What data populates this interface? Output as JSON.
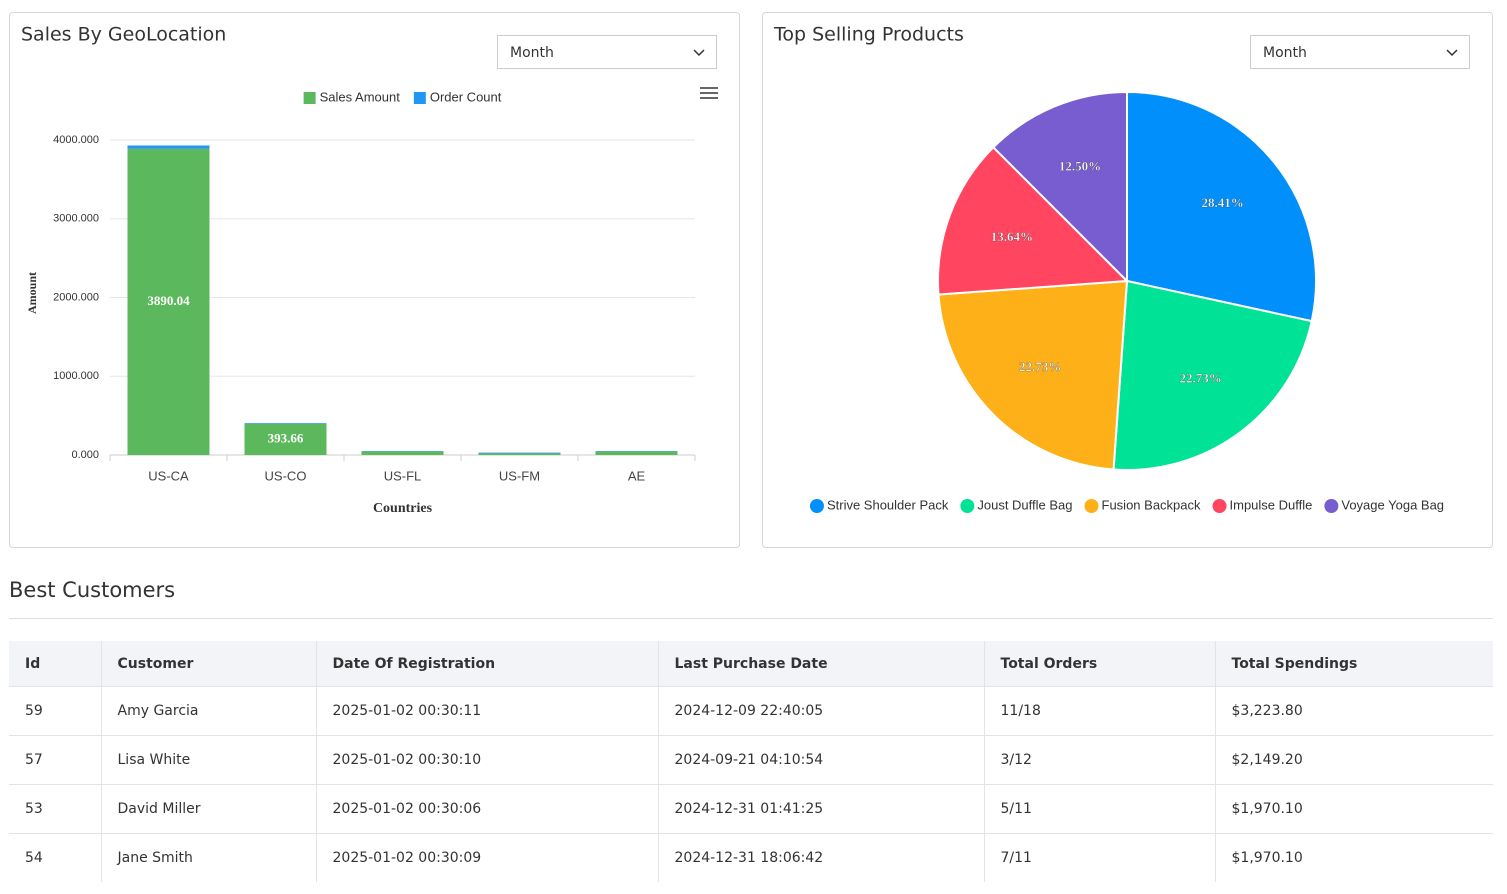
{
  "chart_data": [
    {
      "type": "bar",
      "title": "Sales By GeoLocation",
      "dropdown": "Month",
      "categories": [
        "US-CA",
        "US-CO",
        "US-FL",
        "US-FM",
        "AE"
      ],
      "series": [
        {
          "name": "Sales Amount",
          "color": "#5cb85c",
          "values": [
            3890.04,
            393.66,
            45,
            20,
            45
          ],
          "value_labels": [
            "3890.04",
            "393.66",
            null,
            null,
            null
          ]
        },
        {
          "name": "Order Count",
          "color": "#2196f3",
          "values": [
            40,
            10,
            5,
            10,
            5
          ]
        }
      ],
      "ylim": [
        0,
        4000
      ],
      "yticks": [
        {
          "value": 0,
          "label": "0.000"
        },
        {
          "value": 1000,
          "label": "1000.000"
        },
        {
          "value": 2000,
          "label": "2000.000"
        },
        {
          "value": 3000,
          "label": "3000.000"
        },
        {
          "value": 4000,
          "label": "4000.000"
        }
      ],
      "ylabel": "Amount",
      "xlabel": "Countries",
      "grid": true,
      "stacked": true,
      "legend": "top"
    },
    {
      "type": "pie",
      "title": "Top Selling Products",
      "dropdown": "Month",
      "categories": [
        "Strive Shoulder Pack",
        "Joust Duffle Bag",
        "Fusion Backpack",
        "Impulse Duffle",
        "Voyage Yoga Bag"
      ],
      "values": [
        28.41,
        22.73,
        22.73,
        13.64,
        12.5
      ],
      "value_labels": [
        "28.41%",
        "22.73%",
        "22.73%",
        "13.64%",
        "12.50%"
      ],
      "colors": [
        "#008ffb",
        "#00e396",
        "#feb019",
        "#ff4560",
        "#775dd0"
      ],
      "legend": "bottom"
    }
  ],
  "table": {
    "title": "Best Customers",
    "columns": [
      "Id",
      "Customer",
      "Date Of Registration",
      "Last Purchase Date",
      "Total Orders",
      "Total Spendings"
    ],
    "rows": [
      [
        "59",
        "Amy Garcia",
        "2025-01-02 00:30:11",
        "2024-12-09 22:40:05",
        "11/18",
        "$3,223.80"
      ],
      [
        "57",
        "Lisa White",
        "2025-01-02 00:30:10",
        "2024-09-21 04:10:54",
        "3/12",
        "$2,149.20"
      ],
      [
        "53",
        "David Miller",
        "2025-01-02 00:30:06",
        "2024-12-31 01:41:25",
        "5/11",
        "$1,970.10"
      ],
      [
        "54",
        "Jane Smith",
        "2025-01-02 00:30:09",
        "2024-12-31 18:06:42",
        "7/11",
        "$1,970.10"
      ]
    ]
  }
}
